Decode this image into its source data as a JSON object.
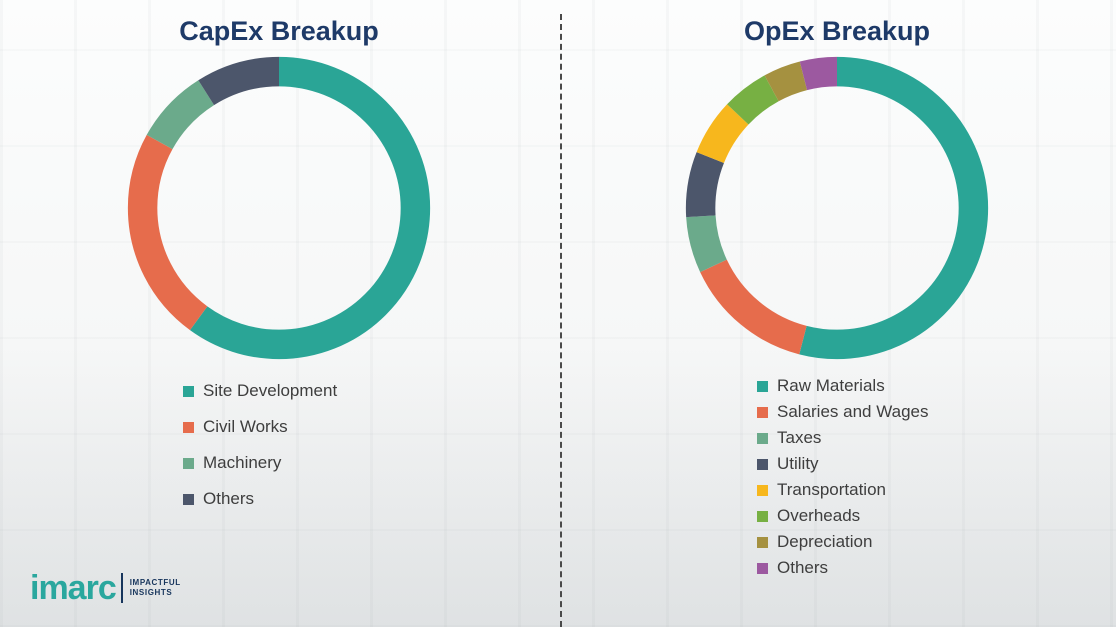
{
  "page": {
    "divider_style": "dashed-vertical"
  },
  "branding": {
    "logo_text": "imarc",
    "tagline_line1": "IMPACTFUL",
    "tagline_line2": "INSIGHTS",
    "logo_color": "#2AA79E",
    "tagline_color": "#17355C"
  },
  "titles_color": "#1E3A68",
  "chart_data": [
    {
      "type": "pie",
      "variant": "donut",
      "title": "CapEx Breakup",
      "legend_position": "bottom",
      "unit": "%",
      "values_estimated_from_arc_angles": true,
      "segments": [
        {
          "label": "Site Development",
          "value": 60,
          "color": "#2AA596"
        },
        {
          "label": "Civil Works",
          "value": 23,
          "color": "#E66C4C"
        },
        {
          "label": "Machinery",
          "value": 8,
          "color": "#6BAA8B"
        },
        {
          "label": "Others",
          "value": 9,
          "color": "#4C566B"
        }
      ]
    },
    {
      "type": "pie",
      "variant": "donut",
      "title": "OpEx Breakup",
      "legend_position": "bottom",
      "unit": "%",
      "values_estimated_from_arc_angles": true,
      "segments": [
        {
          "label": "Raw Materials",
          "value": 54,
          "color": "#2AA596"
        },
        {
          "label": "Salaries and Wages",
          "value": 14,
          "color": "#E66C4C"
        },
        {
          "label": "Taxes",
          "value": 6,
          "color": "#6BAA8B"
        },
        {
          "label": "Utility",
          "value": 7,
          "color": "#4C566B"
        },
        {
          "label": "Transportation",
          "value": 6,
          "color": "#F7B71D"
        },
        {
          "label": "Overheads",
          "value": 5,
          "color": "#77B043"
        },
        {
          "label": "Depreciation",
          "value": 4,
          "color": "#A59140"
        },
        {
          "label": "Others",
          "value": 4,
          "color": "#9C59A0"
        }
      ]
    }
  ]
}
